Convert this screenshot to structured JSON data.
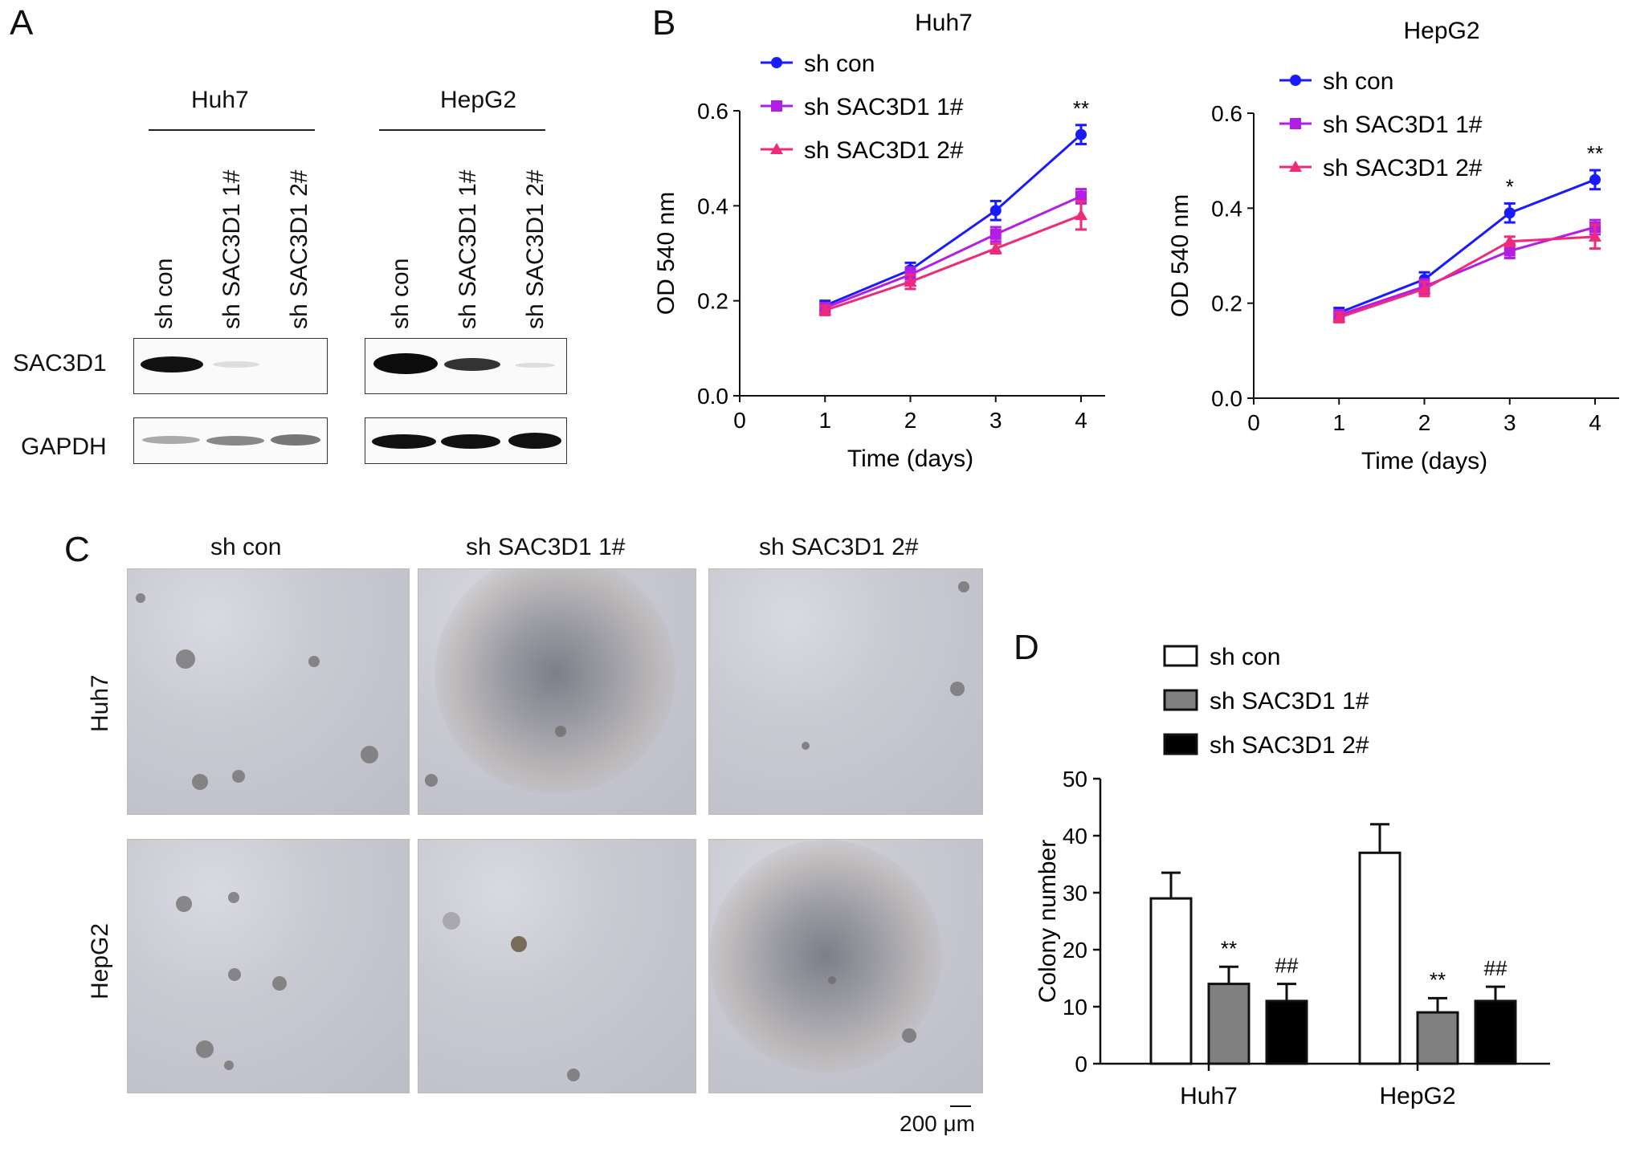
{
  "panels": {
    "a": "A",
    "b": "B",
    "c": "C",
    "d": "D"
  },
  "western_blot": {
    "groups": [
      "Huh7",
      "HepG2"
    ],
    "lanes": [
      "sh con",
      "sh SAC3D1 1#",
      "sh SAC3D1 2#"
    ],
    "rows": [
      "SAC3D1",
      "GAPDH"
    ]
  },
  "micrographs": {
    "columns": [
      "sh con",
      "sh SAC3D1 1#",
      "sh SAC3D1 2#"
    ],
    "rows": [
      "Huh7",
      "HepG2"
    ],
    "scalebar": "200 μm"
  },
  "colors": {
    "sh_con": "#1a1aff",
    "sh_1": "#b31ee6",
    "sh_2": "#ee2a7b",
    "bar_con": "#ffffff",
    "bar_1": "#808080",
    "bar_2": "#000000"
  },
  "chart_data": [
    {
      "type": "line",
      "title": "Huh7",
      "xlabel": "Time (days)",
      "ylabel": "OD 540 nm",
      "x": [
        1,
        2,
        3,
        4
      ],
      "xlim": [
        0,
        4
      ],
      "ylim": [
        0,
        0.6
      ],
      "xticks": [
        "0",
        "1",
        "2",
        "3",
        "4"
      ],
      "yticks": [
        "0.0",
        "0.2",
        "0.4",
        "0.6"
      ],
      "legend_position": "top-left",
      "series": [
        {
          "name": "sh con",
          "values": [
            0.19,
            0.265,
            0.39,
            0.55
          ],
          "errors": [
            0.01,
            0.015,
            0.02,
            0.02
          ]
        },
        {
          "name": "sh SAC3D1 1#",
          "values": [
            0.185,
            0.255,
            0.34,
            0.42
          ],
          "errors": [
            0.01,
            0.015,
            0.015,
            0.015
          ]
        },
        {
          "name": "sh SAC3D1 2#",
          "values": [
            0.18,
            0.24,
            0.31,
            0.38
          ],
          "errors": [
            0.01,
            0.015,
            0.01,
            0.03
          ]
        }
      ],
      "annotations": [
        {
          "x": 4,
          "text": "**"
        }
      ]
    },
    {
      "type": "line",
      "title": "HepG2",
      "xlabel": "Time (days)",
      "ylabel": "OD 540 nm",
      "x": [
        1,
        2,
        3,
        4
      ],
      "xlim": [
        0,
        4
      ],
      "ylim": [
        0,
        0.6
      ],
      "xticks": [
        "0",
        "1",
        "2",
        "3",
        "4"
      ],
      "yticks": [
        "0.0",
        "0.2",
        "0.4",
        "0.6"
      ],
      "legend_position": "top-left",
      "series": [
        {
          "name": "sh con",
          "values": [
            0.18,
            0.25,
            0.39,
            0.46
          ],
          "errors": [
            0.01,
            0.015,
            0.02,
            0.02
          ]
        },
        {
          "name": "sh SAC3D1 1#",
          "values": [
            0.175,
            0.235,
            0.31,
            0.36
          ],
          "errors": [
            0.01,
            0.015,
            0.015,
            0.015
          ]
        },
        {
          "name": "sh SAC3D1 2#",
          "values": [
            0.17,
            0.23,
            0.33,
            0.34
          ],
          "errors": [
            0.01,
            0.015,
            0.01,
            0.025
          ]
        }
      ],
      "annotations": [
        {
          "x": 3,
          "text": "*"
        },
        {
          "x": 4,
          "text": "**"
        }
      ]
    },
    {
      "type": "bar",
      "title": "",
      "xlabel": "",
      "ylabel": "Colony  number",
      "categories": [
        "Huh7",
        "HepG2"
      ],
      "ylim": [
        0,
        50
      ],
      "yticks": [
        "0",
        "10",
        "20",
        "30",
        "40",
        "50"
      ],
      "legend_position": "top-left",
      "series": [
        {
          "name": "sh con",
          "values": [
            29,
            37
          ],
          "errors": [
            4.5,
            5
          ],
          "marks": [
            "",
            ""
          ]
        },
        {
          "name": "sh SAC3D1 1#",
          "values": [
            14,
            9
          ],
          "errors": [
            3,
            2.5
          ],
          "marks": [
            "**",
            "**"
          ]
        },
        {
          "name": "sh SAC3D1 2#",
          "values": [
            11,
            11
          ],
          "errors": [
            3,
            2.5
          ],
          "marks": [
            "##",
            "##"
          ]
        }
      ]
    }
  ]
}
